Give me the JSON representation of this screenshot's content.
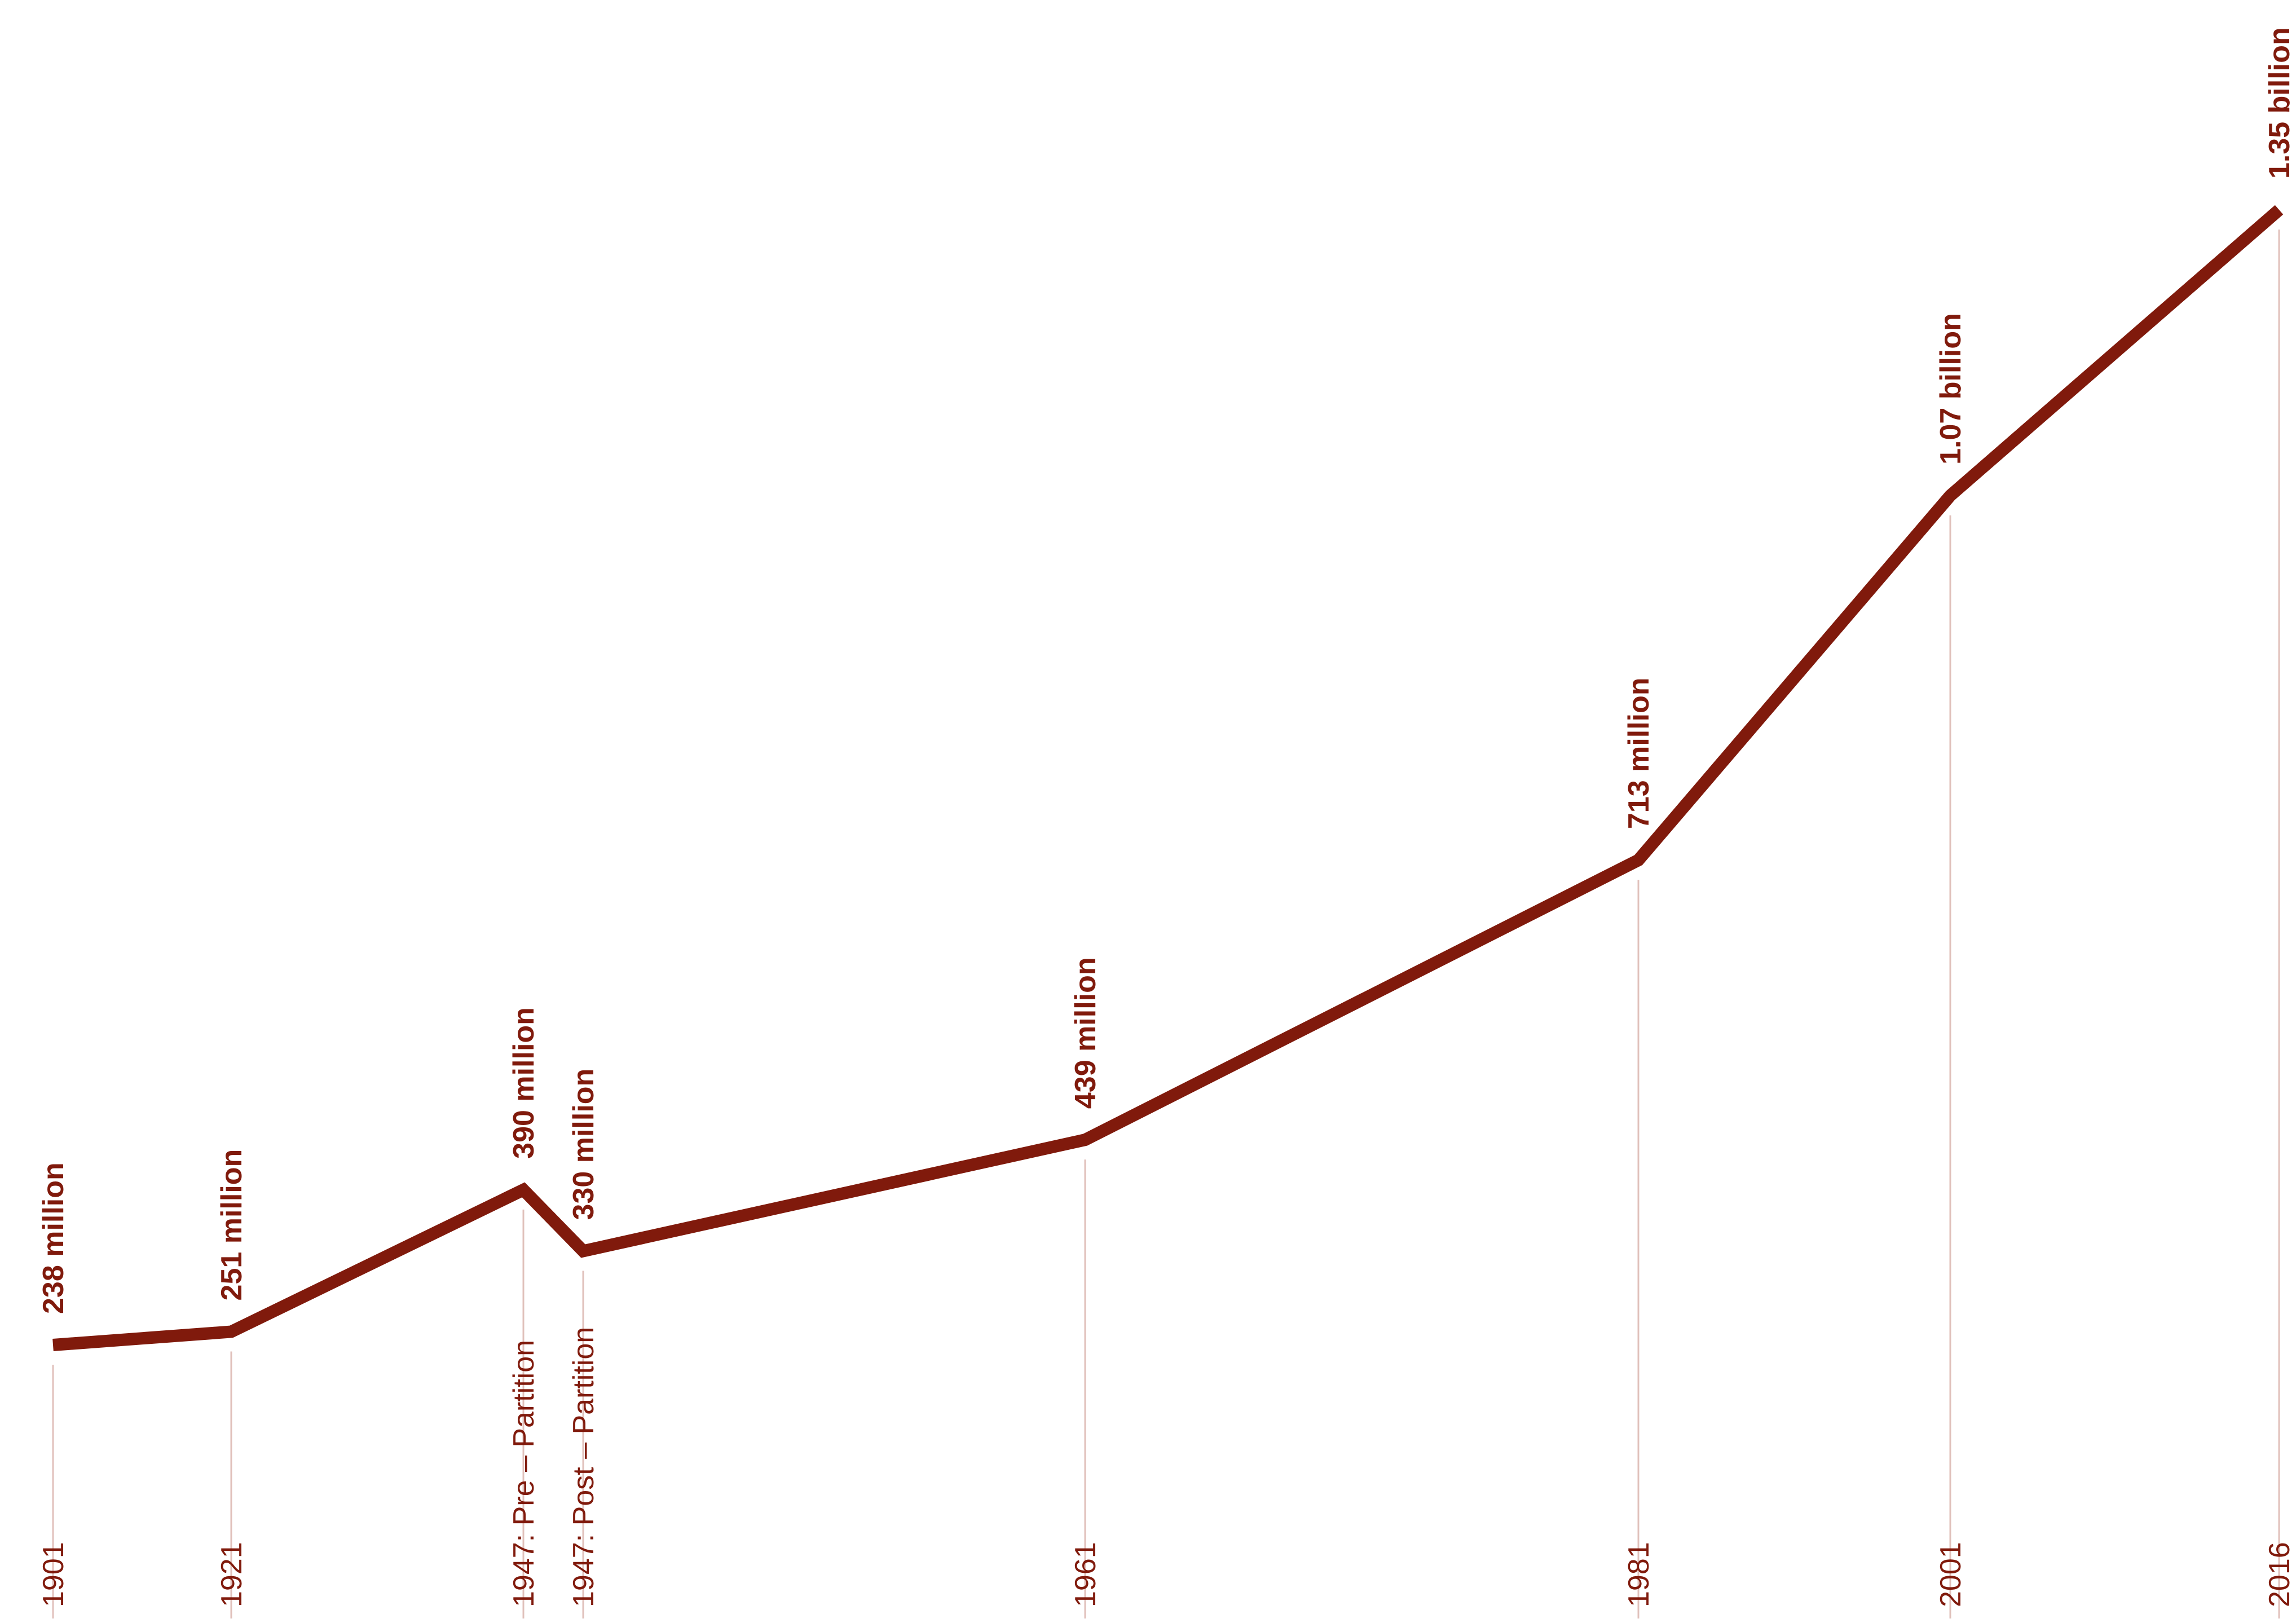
{
  "colors": {
    "line": "#801a0c",
    "text": "#801a0c",
    "guide": "#e0c0bb",
    "background": "#ffffff"
  },
  "chart_data": {
    "type": "line",
    "title": "",
    "xlabel": "",
    "ylabel": "",
    "grid": false,
    "legend": "none",
    "points": [
      {
        "year_label": "1901",
        "value_label": "238 million",
        "year": 1901,
        "value": 238000000
      },
      {
        "year_label": "1921",
        "value_label": "251 million",
        "year": 1921,
        "value": 251000000
      },
      {
        "year_label": "1947: Pre – Partition",
        "value_label": "390 million",
        "year": 1947,
        "value": 390000000
      },
      {
        "year_label": "1947: Post – Partition",
        "value_label": "330 million",
        "year": 1947,
        "value": 330000000
      },
      {
        "year_label": "1961",
        "value_label": "439 million",
        "year": 1961,
        "value": 439000000
      },
      {
        "year_label": "1981",
        "value_label": "713 million",
        "year": 1981,
        "value": 713000000
      },
      {
        "year_label": "2001",
        "value_label": "1.07 billion",
        "year": 2001,
        "value": 1070000000
      },
      {
        "year_label": "2016",
        "value_label": "1.35 billion",
        "year": 2016,
        "value": 1350000000
      }
    ]
  }
}
